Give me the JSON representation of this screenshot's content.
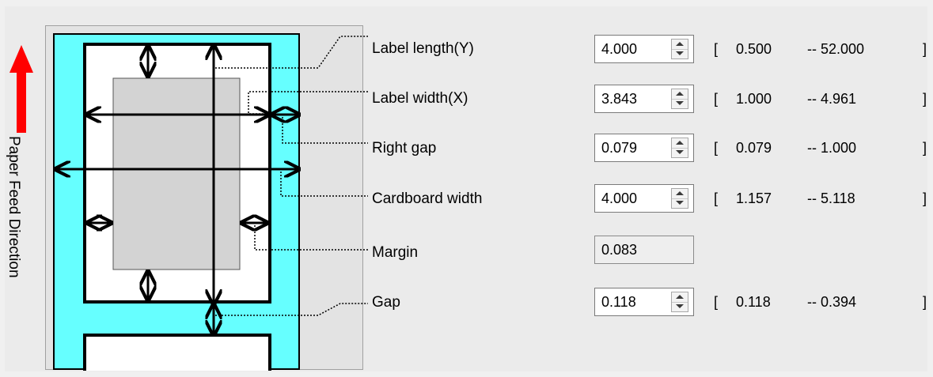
{
  "feed_direction_label": "Paper Feed Direction",
  "colors": {
    "feed_arrow": "#ff0000",
    "backing_paper": "#66ffff",
    "label_face": "#ffffff",
    "print_area": "#d3d3d3"
  },
  "fields": [
    {
      "label": "Label length(Y)",
      "value": "4.000",
      "min": "0.500",
      "max": "-- 52.000",
      "editable": true
    },
    {
      "label": "Label width(X)",
      "value": "3.843",
      "min": "1.000",
      "max": "-- 4.961",
      "editable": true
    },
    {
      "label": "Right gap",
      "value": "0.079",
      "min": "0.079",
      "max": "-- 1.000",
      "editable": true
    },
    {
      "label": "Cardboard width",
      "value": "4.000",
      "min": "1.157",
      "max": "-- 5.118",
      "editable": true
    },
    {
      "label": "Margin",
      "value": "0.083",
      "editable": false
    },
    {
      "label": "Gap",
      "value": "0.118",
      "min": "0.118",
      "max": "-- 0.394",
      "editable": true
    }
  ],
  "bracket_open": "[",
  "bracket_close": "]"
}
